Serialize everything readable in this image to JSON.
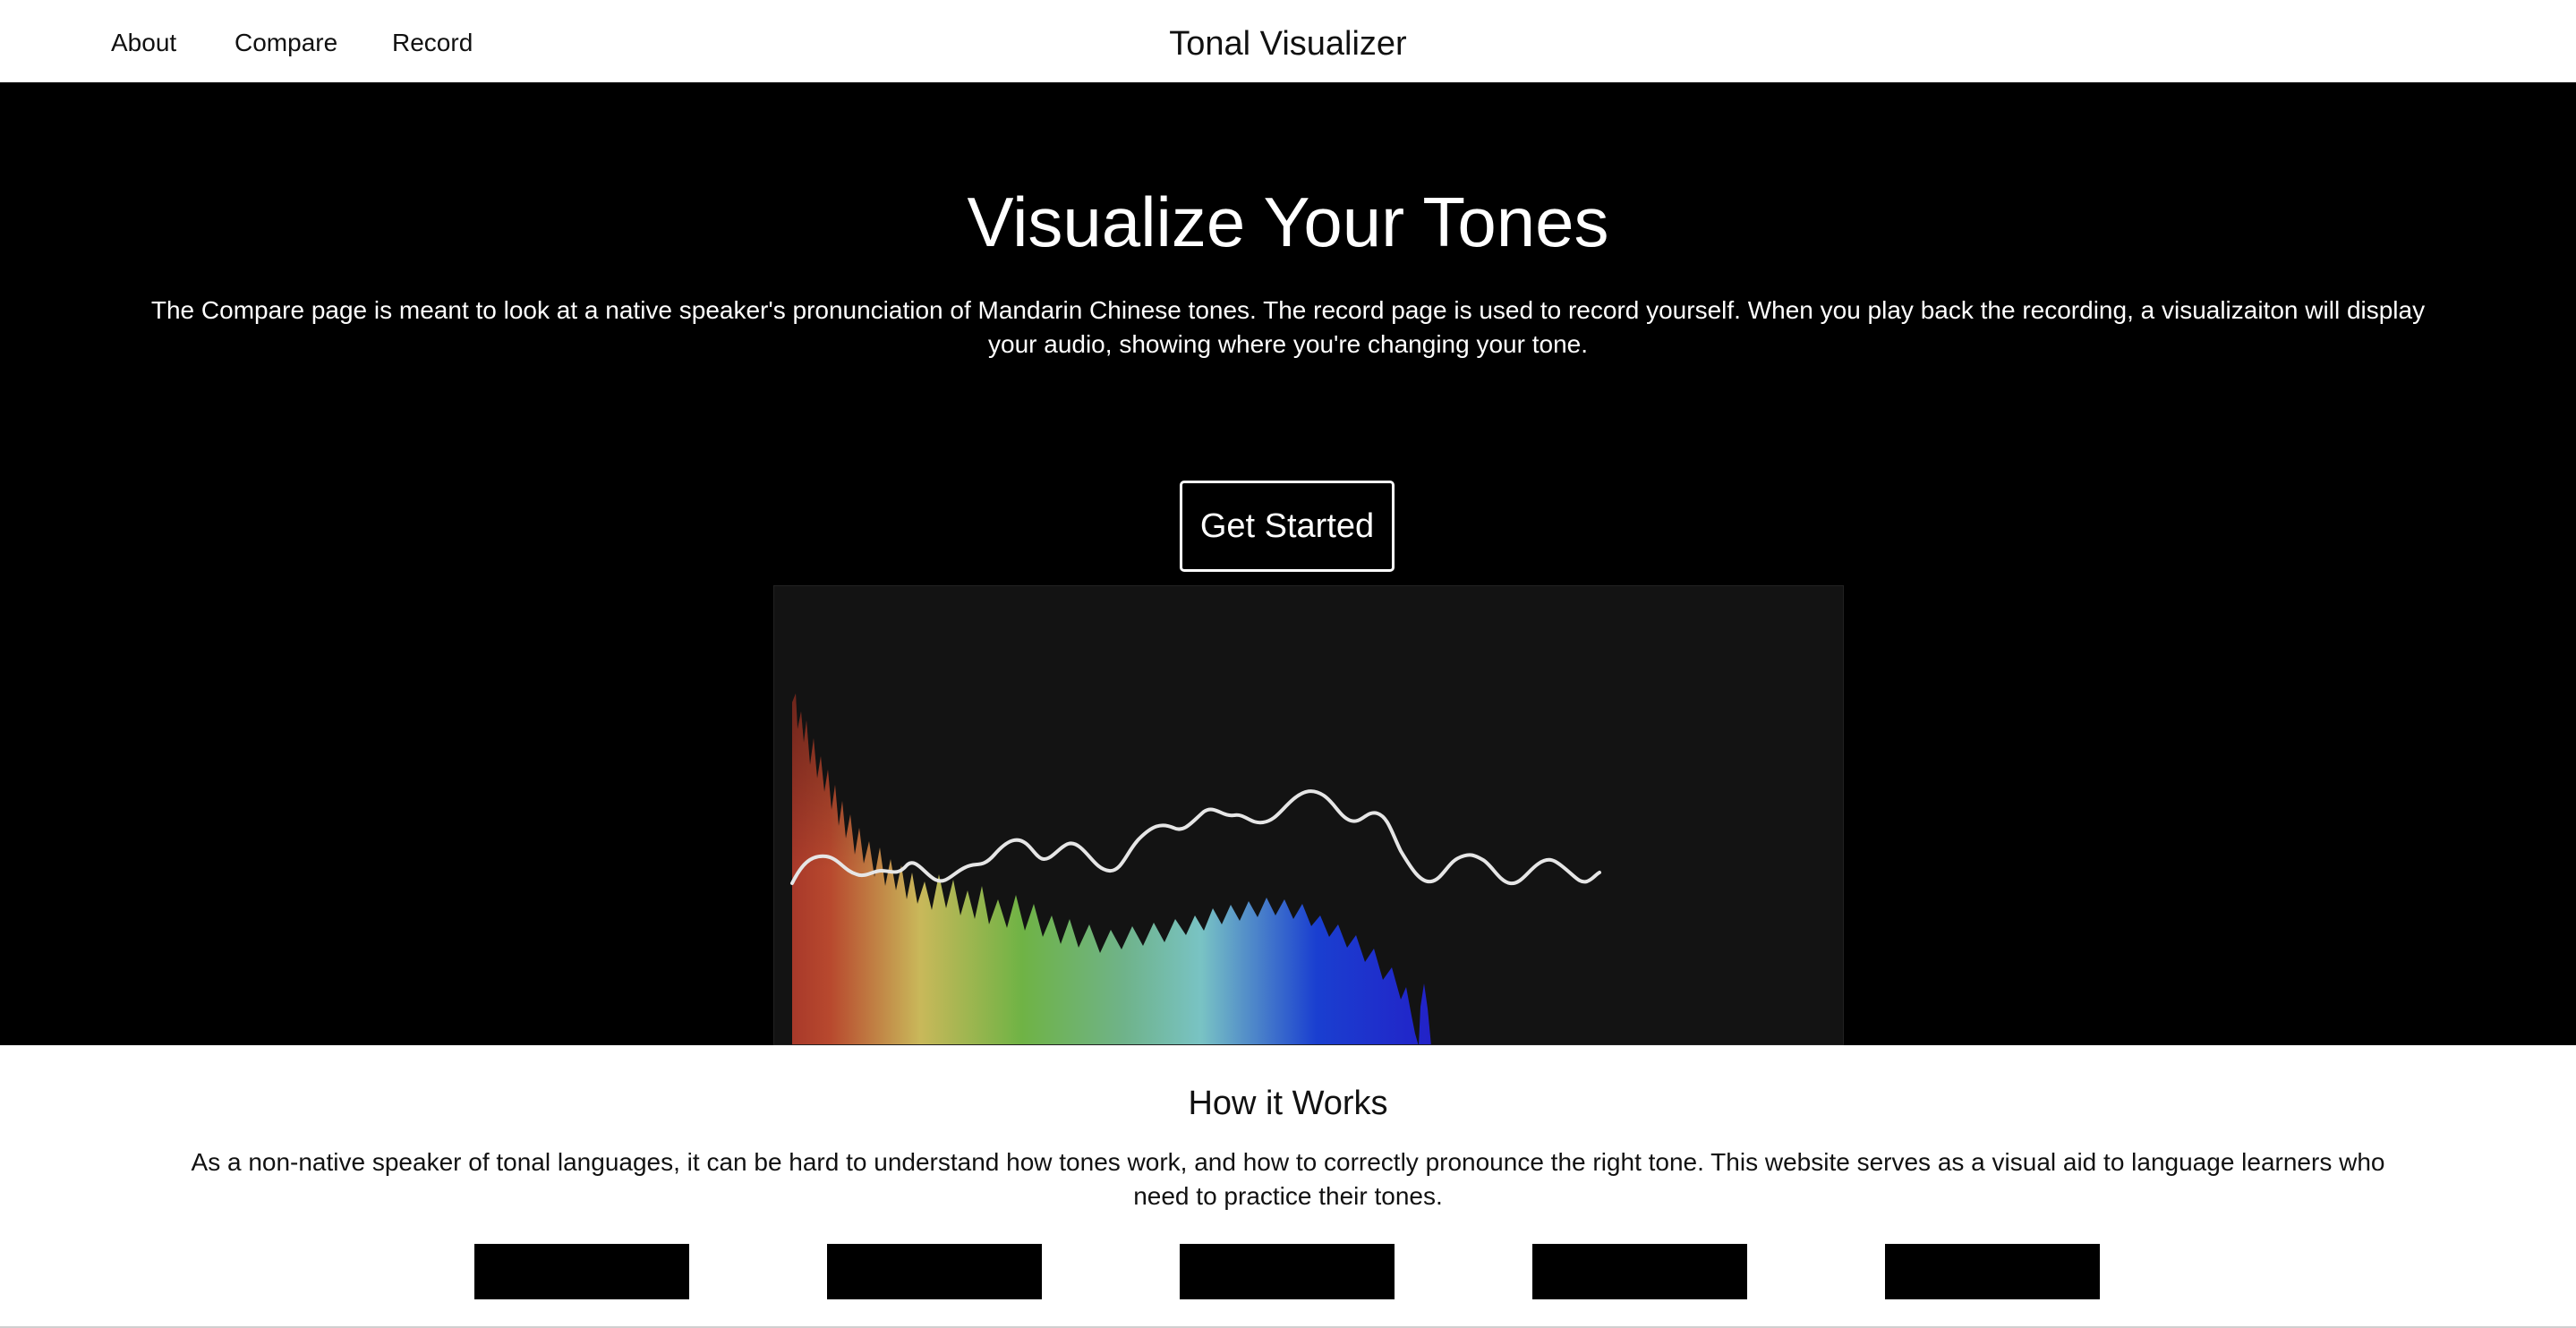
{
  "navbar": {
    "links": [
      {
        "label": "About"
      },
      {
        "label": "Compare"
      },
      {
        "label": "Record"
      }
    ],
    "brand": "Tonal Visualizer"
  },
  "hero": {
    "title": "Visualize Your Tones",
    "description": "The Compare page is meant to look at a native speaker's pronunciation of Mandarin Chinese tones. The record page is used to record yourself. When you play back the recording, a visualizaiton will display your audio, showing where you're changing your tone.",
    "cta_label": "Get Started",
    "visualization": {
      "description_icon": "spectrum-pitch-visualization",
      "spectrum_colors": [
        "#b8392a",
        "#c9b85a",
        "#6fb345",
        "#79c3c4",
        "#1a3fd0",
        "#2222c8"
      ],
      "pitch_line_color": "#e6e6e6"
    }
  },
  "how_it_works": {
    "title": "How it Works",
    "description": "As a non-native speaker of tonal languages, it can be hard to understand how tones work, and how to correctly pronounce the right tone. This website serves as a visual aid to language learners who need to practice their tones.",
    "steps_count": 5
  },
  "colors": {
    "hero_background": "#000000",
    "panel_background": "#131313",
    "text_light": "#ffffff",
    "text_dark": "#111111"
  }
}
